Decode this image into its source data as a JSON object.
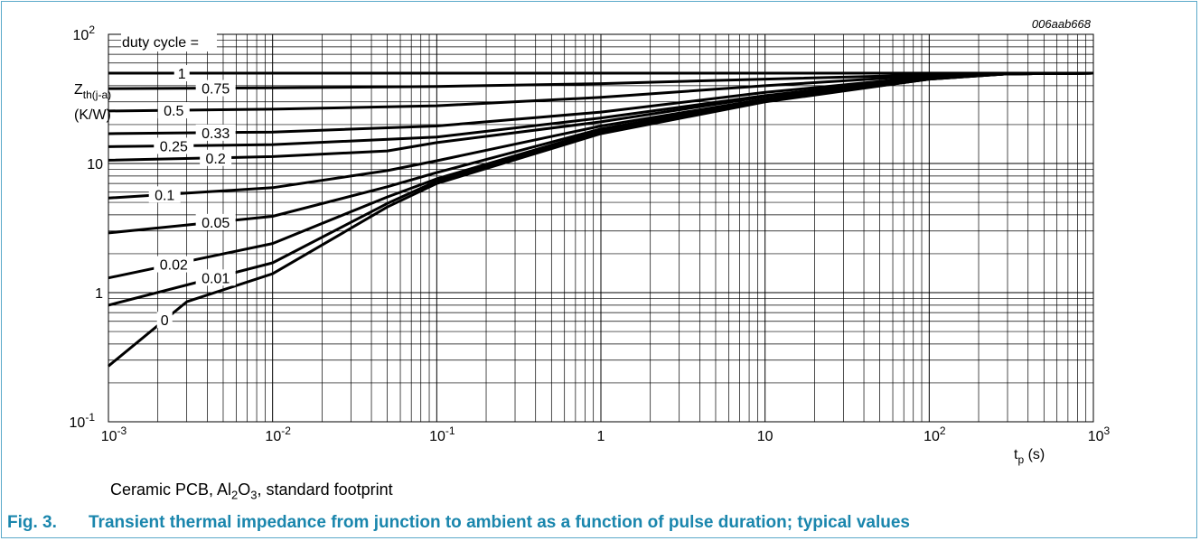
{
  "chart_data": {
    "type": "line",
    "figure_id": "006aab668",
    "x_scale": "log",
    "y_scale": "log",
    "xlim": [
      0.001,
      1000
    ],
    "ylim": [
      0.1,
      100
    ],
    "x_ticks": [
      {
        "value": 0.001,
        "base": "10",
        "exp": "-3"
      },
      {
        "value": 0.01,
        "base": "10",
        "exp": "-2"
      },
      {
        "value": 0.1,
        "base": "10",
        "exp": "-1"
      },
      {
        "value": 1,
        "base": "1",
        "exp": ""
      },
      {
        "value": 10,
        "base": "10",
        "exp": ""
      },
      {
        "value": 100,
        "base": "10",
        "exp": "2"
      },
      {
        "value": 1000,
        "base": "10",
        "exp": "3"
      }
    ],
    "y_ticks": [
      {
        "value": 0.1,
        "base": "10",
        "exp": "-1"
      },
      {
        "value": 1,
        "base": "1",
        "exp": ""
      },
      {
        "value": 10,
        "base": "10",
        "exp": ""
      },
      {
        "value": 100,
        "base": "10",
        "exp": "2"
      }
    ],
    "xlabel": {
      "main": "t",
      "sub": "p",
      "unit": " (s)"
    },
    "ylabel": {
      "main": "Z",
      "sub": "th(j-a)",
      "unit": "(K/W)"
    },
    "legend_title": "duty cycle =",
    "grid": true,
    "series": [
      {
        "name": "1",
        "label_x": 0.0028,
        "points": [
          [
            0.001,
            50
          ],
          [
            1000,
            50
          ]
        ]
      },
      {
        "name": "0.75",
        "label_x": 0.0045,
        "points": [
          [
            0.001,
            38
          ],
          [
            0.01,
            38.5
          ],
          [
            0.1,
            39.5
          ],
          [
            1,
            41.5
          ],
          [
            10,
            45
          ],
          [
            100,
            48.5
          ],
          [
            300,
            49.5
          ],
          [
            1000,
            50
          ]
        ]
      },
      {
        "name": "0.5",
        "label_x": 0.0025,
        "points": [
          [
            0.001,
            25.5
          ],
          [
            0.01,
            26.3
          ],
          [
            0.1,
            28
          ],
          [
            1,
            32.5
          ],
          [
            10,
            40
          ],
          [
            100,
            48
          ],
          [
            300,
            49.5
          ],
          [
            1000,
            50
          ]
        ]
      },
      {
        "name": "0.33",
        "label_x": 0.0045,
        "points": [
          [
            0.001,
            17
          ],
          [
            0.01,
            17.5
          ],
          [
            0.1,
            19.5
          ],
          [
            1,
            25
          ],
          [
            10,
            35.5
          ],
          [
            100,
            47
          ],
          [
            300,
            49.5
          ],
          [
            1000,
            50
          ]
        ]
      },
      {
        "name": "0.25",
        "label_x": 0.0025,
        "points": [
          [
            0.001,
            13.5
          ],
          [
            0.01,
            14
          ],
          [
            0.1,
            16
          ],
          [
            1,
            22.5
          ],
          [
            10,
            33.5
          ],
          [
            100,
            46.5
          ],
          [
            300,
            49.5
          ],
          [
            1000,
            50
          ]
        ]
      },
      {
        "name": "0.2",
        "label_x": 0.0045,
        "points": [
          [
            0.001,
            10.6
          ],
          [
            0.01,
            11.3
          ],
          [
            0.05,
            12.5
          ],
          [
            0.1,
            14.5
          ],
          [
            1,
            21
          ],
          [
            10,
            33
          ],
          [
            100,
            46
          ],
          [
            300,
            49.5
          ],
          [
            1000,
            50
          ]
        ]
      },
      {
        "name": "0.1",
        "label_x": 0.0022,
        "points": [
          [
            0.001,
            5.4
          ],
          [
            0.01,
            6.5
          ],
          [
            0.05,
            8.8
          ],
          [
            0.1,
            10.5
          ],
          [
            1,
            19.5
          ],
          [
            10,
            31.5
          ],
          [
            100,
            45.5
          ],
          [
            300,
            49.5
          ],
          [
            1000,
            50
          ]
        ]
      },
      {
        "name": "0.05",
        "label_x": 0.0045,
        "points": [
          [
            0.001,
            2.9
          ],
          [
            0.01,
            3.9
          ],
          [
            0.05,
            6.6
          ],
          [
            0.1,
            8.5
          ],
          [
            1,
            18.5
          ],
          [
            10,
            31
          ],
          [
            100,
            45.5
          ],
          [
            300,
            49.5
          ],
          [
            1000,
            50
          ]
        ]
      },
      {
        "name": "0.02",
        "label_x": 0.0025,
        "points": [
          [
            0.001,
            1.3
          ],
          [
            0.01,
            2.4
          ],
          [
            0.05,
            5.5
          ],
          [
            0.1,
            7.6
          ],
          [
            1,
            18
          ],
          [
            10,
            30.5
          ],
          [
            100,
            45
          ],
          [
            300,
            49.5
          ],
          [
            1000,
            50
          ]
        ]
      },
      {
        "name": "0.01",
        "label_x": 0.0045,
        "points": [
          [
            0.001,
            0.8
          ],
          [
            0.01,
            1.7
          ],
          [
            0.05,
            4.9
          ],
          [
            0.1,
            7.3
          ],
          [
            1,
            17.5
          ],
          [
            10,
            30.5
          ],
          [
            100,
            45
          ],
          [
            300,
            49.5
          ],
          [
            1000,
            50
          ]
        ]
      },
      {
        "name": "0",
        "label_x": 0.0022,
        "points": [
          [
            0.001,
            0.27
          ],
          [
            0.003,
            0.85
          ],
          [
            0.01,
            1.4
          ],
          [
            0.05,
            4.6
          ],
          [
            0.1,
            7
          ],
          [
            1,
            17
          ],
          [
            10,
            30
          ],
          [
            100,
            45
          ],
          [
            300,
            49.5
          ],
          [
            1000,
            50
          ]
        ]
      }
    ]
  },
  "note": {
    "pre": "Ceramic PCB, Al",
    "sub1": "2",
    "mid": "O",
    "sub2": "3",
    "post": ", standard footprint"
  },
  "caption": {
    "number": "Fig. 3.",
    "text": "Transient thermal impedance from junction to ambient as a function of pulse duration; typical values"
  }
}
